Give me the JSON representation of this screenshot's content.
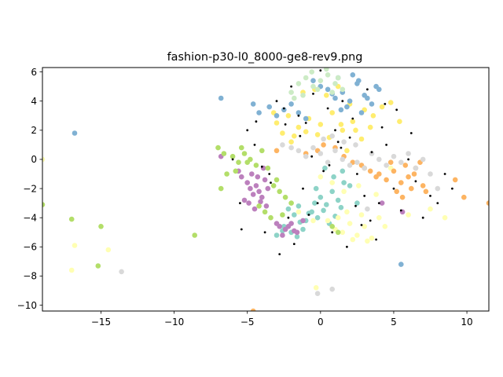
{
  "chart_data": {
    "type": "scatter",
    "title": "fashion-p30-l0_8000-ge8-rev9.png",
    "xlabel": "",
    "ylabel": "",
    "xlim": [
      -19,
      11.5
    ],
    "ylim": [
      -10.4,
      6.3
    ],
    "xticks": [
      -15,
      -10,
      -5,
      0,
      5,
      10
    ],
    "yticks": [
      -10,
      -8,
      -6,
      -4,
      -2,
      0,
      2,
      4,
      6
    ],
    "grid": false,
    "legend": "none",
    "marker": "filled circle",
    "colors": {
      "teal": "#8dd3c7",
      "yellow": "#ffed6f",
      "pale_yellow": "#ffffb3",
      "purple": "#bc80bd",
      "orange": "#fdb462",
      "blue": "#80b1d3",
      "green": "#b3de69",
      "gray": "#d9d9d9",
      "mint": "#ccebc5",
      "black": "#000000"
    },
    "series": [
      {
        "color": "teal",
        "x": [
          -2.2,
          -1.8,
          -1.5,
          -1.0,
          -0.6,
          -0.2,
          0.2,
          0.6,
          1.0,
          1.4,
          -2.5,
          -1.2,
          -0.4,
          0.4,
          1.2,
          -2.0,
          -1.4,
          -0.8,
          0.0,
          0.8,
          -3.0,
          -2.6,
          1.6,
          2.0,
          2.5,
          0.9,
          1.5,
          0.3,
          -0.3,
          -1.6
        ],
        "y": [
          -3.4,
          -3.8,
          -3.2,
          -4.2,
          -3.6,
          -4.0,
          -3.5,
          -4.4,
          -3.9,
          -3.3,
          -4.6,
          -4.8,
          -3.0,
          -3.1,
          -2.8,
          -5.0,
          -4.3,
          -3.7,
          -2.6,
          -2.2,
          -5.2,
          -4.9,
          -1.6,
          -1.8,
          -3.0,
          -1.2,
          -0.8,
          -0.6,
          -2.0,
          -5.3
        ]
      },
      {
        "color": "yellow",
        "x": [
          -3.0,
          -2.2,
          -1.5,
          -0.8,
          0.0,
          0.8,
          1.5,
          2.2,
          3.0,
          3.6,
          -2.6,
          -1.8,
          -1.0,
          -0.2,
          0.6,
          1.4,
          2.4,
          3.4,
          4.2,
          4.8,
          -1.2,
          -0.4,
          0.4,
          1.2,
          2.0,
          -2.0,
          2.8,
          -3.2,
          5.4,
          1.8
        ],
        "y": [
          2.5,
          3.0,
          2.2,
          2.8,
          2.4,
          3.2,
          2.0,
          2.6,
          3.4,
          3.0,
          1.8,
          1.6,
          1.9,
          1.7,
          1.5,
          2.4,
          2.0,
          2.2,
          3.6,
          3.9,
          4.6,
          4.8,
          4.4,
          5.0,
          3.8,
          1.2,
          1.4,
          3.2,
          2.6,
          0.6
        ]
      },
      {
        "color": "pale_yellow",
        "x": [
          0.5,
          1.0,
          1.5,
          2.0,
          2.5,
          3.0,
          3.5,
          4.0,
          1.8,
          2.8,
          3.2,
          2.2,
          1.2,
          4.4,
          -1.5,
          -0.5,
          0.8,
          6.0,
          7.5,
          8.5,
          -16.8,
          -14.5,
          -17.0,
          -0.3,
          2.6,
          3.8,
          -19.0,
          0.0,
          4.8,
          1.6
        ],
        "y": [
          -4.2,
          -4.8,
          -5.0,
          -4.4,
          -5.2,
          -4.6,
          -5.4,
          -4.0,
          -3.6,
          -3.8,
          -5.6,
          -5.5,
          -4.0,
          -4.6,
          -3.6,
          -4.2,
          -1.6,
          -3.8,
          -3.4,
          -4.0,
          -5.9,
          -6.2,
          -7.6,
          -8.8,
          -1.8,
          -2.4,
          0.0,
          -1.2,
          -0.6,
          -2.2
        ]
      },
      {
        "color": "purple",
        "x": [
          -5.4,
          -5.0,
          -4.8,
          -4.6,
          -4.4,
          -4.2,
          -4.0,
          -3.8,
          -3.6,
          -5.2,
          -4.9,
          -4.5,
          -4.1,
          -3.7,
          -5.6,
          -4.7,
          -4.3,
          -3.9,
          -2.8,
          -2.4,
          -2.0,
          -1.6,
          -1.2,
          -2.6,
          -2.2,
          -1.8,
          -3.0,
          5.6,
          4.2,
          -6.8
        ],
        "y": [
          -1.2,
          -1.6,
          -2.0,
          -2.4,
          -1.8,
          -2.2,
          -2.6,
          -1.4,
          -2.0,
          -2.8,
          -3.0,
          -3.4,
          -2.9,
          -3.2,
          -0.8,
          -1.0,
          -1.2,
          -0.6,
          -4.6,
          -4.8,
          -4.4,
          -5.0,
          -4.2,
          -5.2,
          -4.6,
          -4.9,
          -4.4,
          -3.6,
          -3.0,
          0.2
        ]
      },
      {
        "color": "orange",
        "x": [
          4.0,
          4.5,
          5.0,
          5.5,
          6.0,
          6.5,
          7.0,
          5.2,
          5.8,
          6.4,
          4.8,
          5.6,
          6.2,
          3.4,
          2.8,
          -0.2,
          0.2,
          -1.0,
          -3.0,
          1.0,
          1.6,
          2.2,
          3.0,
          3.8,
          6.8,
          7.2,
          9.2,
          9.8,
          11.5,
          -4.6
        ],
        "y": [
          -1.0,
          -1.4,
          -0.8,
          -1.6,
          -1.2,
          -0.6,
          -1.8,
          -2.2,
          -0.4,
          -1.0,
          -0.2,
          -2.6,
          -2.0,
          -0.8,
          -0.4,
          0.6,
          1.0,
          0.4,
          0.6,
          0.8,
          0.2,
          -0.2,
          -0.6,
          -1.2,
          -0.2,
          -2.2,
          -1.4,
          -2.6,
          -3.0,
          -10.4
        ]
      },
      {
        "color": "blue",
        "x": [
          1.0,
          1.5,
          2.0,
          2.5,
          3.0,
          3.5,
          4.0,
          1.2,
          2.2,
          3.2,
          -2.0,
          -2.5,
          -3.0,
          -1.5,
          -1.0,
          0.5,
          1.8,
          2.8,
          -3.5,
          -4.2,
          -4.6,
          -6.8,
          -16.8,
          5.5,
          0.0,
          -0.5,
          0.8,
          1.4,
          2.6,
          3.8
        ],
        "y": [
          4.2,
          4.6,
          4.0,
          5.2,
          4.4,
          3.8,
          4.8,
          5.6,
          5.8,
          4.2,
          3.8,
          3.4,
          3.0,
          3.2,
          2.8,
          4.8,
          3.6,
          3.2,
          3.6,
          3.2,
          3.8,
          4.2,
          1.8,
          -7.2,
          5.0,
          5.4,
          4.5,
          3.4,
          5.4,
          5.0
        ]
      },
      {
        "color": "green",
        "x": [
          -6.0,
          -5.6,
          -5.2,
          -4.8,
          -4.4,
          -4.0,
          -3.6,
          -3.2,
          -2.8,
          -6.4,
          -7.0,
          -6.8,
          -5.8,
          -5.0,
          -2.4,
          -2.0,
          0.8,
          1.2,
          -17.0,
          -15.0,
          -19.0,
          -8.6,
          -15.2,
          -3.4,
          -3.8,
          -4.2,
          -2.6,
          -5.4,
          -6.6,
          -3.0
        ],
        "y": [
          0.2,
          -0.2,
          0.4,
          0.0,
          -0.4,
          0.6,
          -0.6,
          -1.8,
          -2.2,
          -1.0,
          0.8,
          -2.0,
          -0.8,
          -0.2,
          -2.6,
          -3.0,
          -4.6,
          -5.0,
          -4.1,
          -4.6,
          -3.1,
          -5.2,
          -7.3,
          -4.0,
          -3.6,
          -3.2,
          -3.8,
          0.8,
          0.4,
          -1.4
        ]
      },
      {
        "color": "gray",
        "x": [
          -1.5,
          -1.0,
          -0.5,
          0.0,
          0.5,
          1.0,
          1.5,
          2.0,
          2.5,
          3.0,
          3.5,
          4.0,
          4.5,
          5.0,
          5.5,
          6.0,
          6.5,
          7.0,
          7.5,
          8.0,
          -2.0,
          -2.6,
          0.2,
          0.8,
          1.6,
          2.4,
          -13.6,
          -0.2,
          0.8,
          3.2
        ],
        "y": [
          0.6,
          0.2,
          0.8,
          0.4,
          -0.2,
          0.6,
          0.0,
          -0.4,
          -0.2,
          -0.6,
          0.4,
          0.0,
          -0.4,
          0.2,
          -0.2,
          0.4,
          -0.6,
          0.0,
          -1.0,
          -2.0,
          0.8,
          1.0,
          1.4,
          1.6,
          1.2,
          1.0,
          -7.7,
          -9.2,
          -8.9,
          -3.4
        ]
      },
      {
        "color": "mint",
        "x": [
          -1.5,
          -1.0,
          -0.5,
          0.0,
          0.5,
          1.0,
          1.5,
          -2.0,
          -1.2,
          -0.2,
          0.8,
          -0.6,
          0.4,
          1.2,
          -1.8
        ],
        "y": [
          5.2,
          5.6,
          5.0,
          5.4,
          5.8,
          5.2,
          4.8,
          4.6,
          4.4,
          4.8,
          4.6,
          6.0,
          6.2,
          5.6,
          4.2
        ]
      },
      {
        "color": "black",
        "x": [
          -3.0,
          -2.5,
          -2.0,
          -1.5,
          -1.0,
          -0.5,
          0.0,
          0.5,
          1.0,
          1.5,
          2.0,
          2.5,
          3.0,
          3.5,
          4.0,
          4.5,
          5.0,
          5.5,
          6.0,
          6.5,
          7.0,
          7.5,
          8.0,
          8.5,
          9.0,
          -5.0,
          -4.5,
          -4.0,
          -3.5,
          -6.0,
          -5.5,
          -2.2,
          -1.2,
          -0.2,
          0.8,
          1.8,
          2.8,
          3.8,
          -3.8,
          -2.8,
          -1.8,
          -0.8,
          0.2,
          1.2,
          2.2,
          3.2,
          4.2,
          5.2,
          6.2,
          -0.6,
          0.6,
          -1.4,
          1.4,
          -2.4,
          2.4,
          -3.4,
          3.4,
          -4.4,
          4.4,
          -5.4
        ],
        "y": [
          4.0,
          3.5,
          5.0,
          3.0,
          2.5,
          4.5,
          6.1,
          3.5,
          2.0,
          4.0,
          1.5,
          -1.0,
          -2.5,
          0.5,
          -3.0,
          1.0,
          -2.0,
          -3.5,
          0.0,
          -1.5,
          -4.0,
          -2.5,
          -3.0,
          -1.0,
          -2.0,
          2.0,
          1.0,
          -0.5,
          -1.0,
          0.0,
          -3.0,
          -4.0,
          -2.0,
          -3.0,
          -5.0,
          -6.0,
          -4.5,
          -5.5,
          -5.0,
          -6.5,
          -5.8,
          -3.8,
          -0.8,
          1.2,
          2.8,
          4.8,
          2.2,
          3.4,
          1.8,
          0.2,
          -0.4,
          1.6,
          0.8,
          2.4,
          -3.2,
          -1.6,
          -4.2,
          2.6,
          3.8,
          -4.8
        ]
      }
    ]
  }
}
